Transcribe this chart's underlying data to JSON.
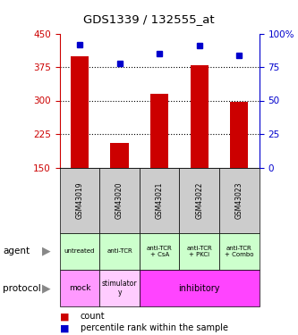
{
  "title": "GDS1339 / 132555_at",
  "samples": [
    "GSM43019",
    "GSM43020",
    "GSM43021",
    "GSM43022",
    "GSM43023"
  ],
  "counts": [
    400,
    205,
    315,
    380,
    298
  ],
  "percentiles": [
    92,
    78,
    85,
    91,
    84
  ],
  "ylim_left": [
    150,
    450
  ],
  "yticks_left": [
    150,
    225,
    300,
    375,
    450
  ],
  "ylim_right": [
    0,
    100
  ],
  "yticks_right": [
    0,
    25,
    50,
    75,
    100
  ],
  "bar_color": "#cc0000",
  "dot_color": "#0000cc",
  "agent_labels": [
    "untreated",
    "anti-TCR",
    "anti-TCR\n+ CsA",
    "anti-TCR\n+ PKCi",
    "anti-TCR\n+ Combo"
  ],
  "agent_bg": "#ccffcc",
  "sample_bg": "#cccccc",
  "protocol_mock_bg": "#ff99ff",
  "protocol_stim_bg": "#ffccff",
  "protocol_inhib_bg": "#ff44ff",
  "left_axis_color": "#cc0000",
  "right_axis_color": "#0000cc"
}
